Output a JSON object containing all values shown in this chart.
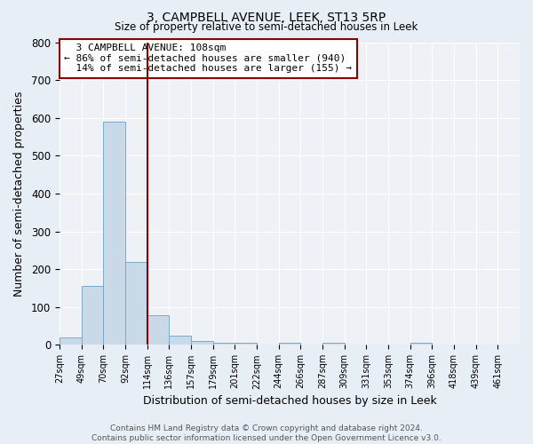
{
  "title": "3, CAMPBELL AVENUE, LEEK, ST13 5RP",
  "subtitle": "Size of property relative to semi-detached houses in Leek",
  "xlabel": "Distribution of semi-detached houses by size in Leek",
  "ylabel": "Number of semi-detached properties",
  "footer_line1": "Contains HM Land Registry data © Crown copyright and database right 2024.",
  "footer_line2": "Contains public sector information licensed under the Open Government Licence v3.0.",
  "bin_labels": [
    "27sqm",
    "49sqm",
    "70sqm",
    "92sqm",
    "114sqm",
    "136sqm",
    "157sqm",
    "179sqm",
    "201sqm",
    "222sqm",
    "244sqm",
    "266sqm",
    "287sqm",
    "309sqm",
    "331sqm",
    "353sqm",
    "374sqm",
    "396sqm",
    "418sqm",
    "439sqm",
    "461sqm"
  ],
  "bar_values": [
    20,
    155,
    590,
    218,
    78,
    25,
    10,
    5,
    5,
    0,
    5,
    0,
    5,
    0,
    0,
    0,
    5,
    0,
    0,
    0,
    0
  ],
  "bar_color": "#c9d9e8",
  "bar_edge_color": "#7aaac8",
  "property_label": "3 CAMPBELL AVENUE: 108sqm",
  "pct_smaller": 86,
  "pct_larger": 14,
  "n_smaller": 940,
  "n_larger": 155,
  "marker_line_color": "#8b0000",
  "annotation_box_color": "#8b0000",
  "ylim": [
    0,
    800
  ],
  "yticks": [
    0,
    100,
    200,
    300,
    400,
    500,
    600,
    700,
    800
  ],
  "bg_color": "#e8eef5",
  "plot_bg_color": "#eef2f7",
  "property_line_bin": 4
}
